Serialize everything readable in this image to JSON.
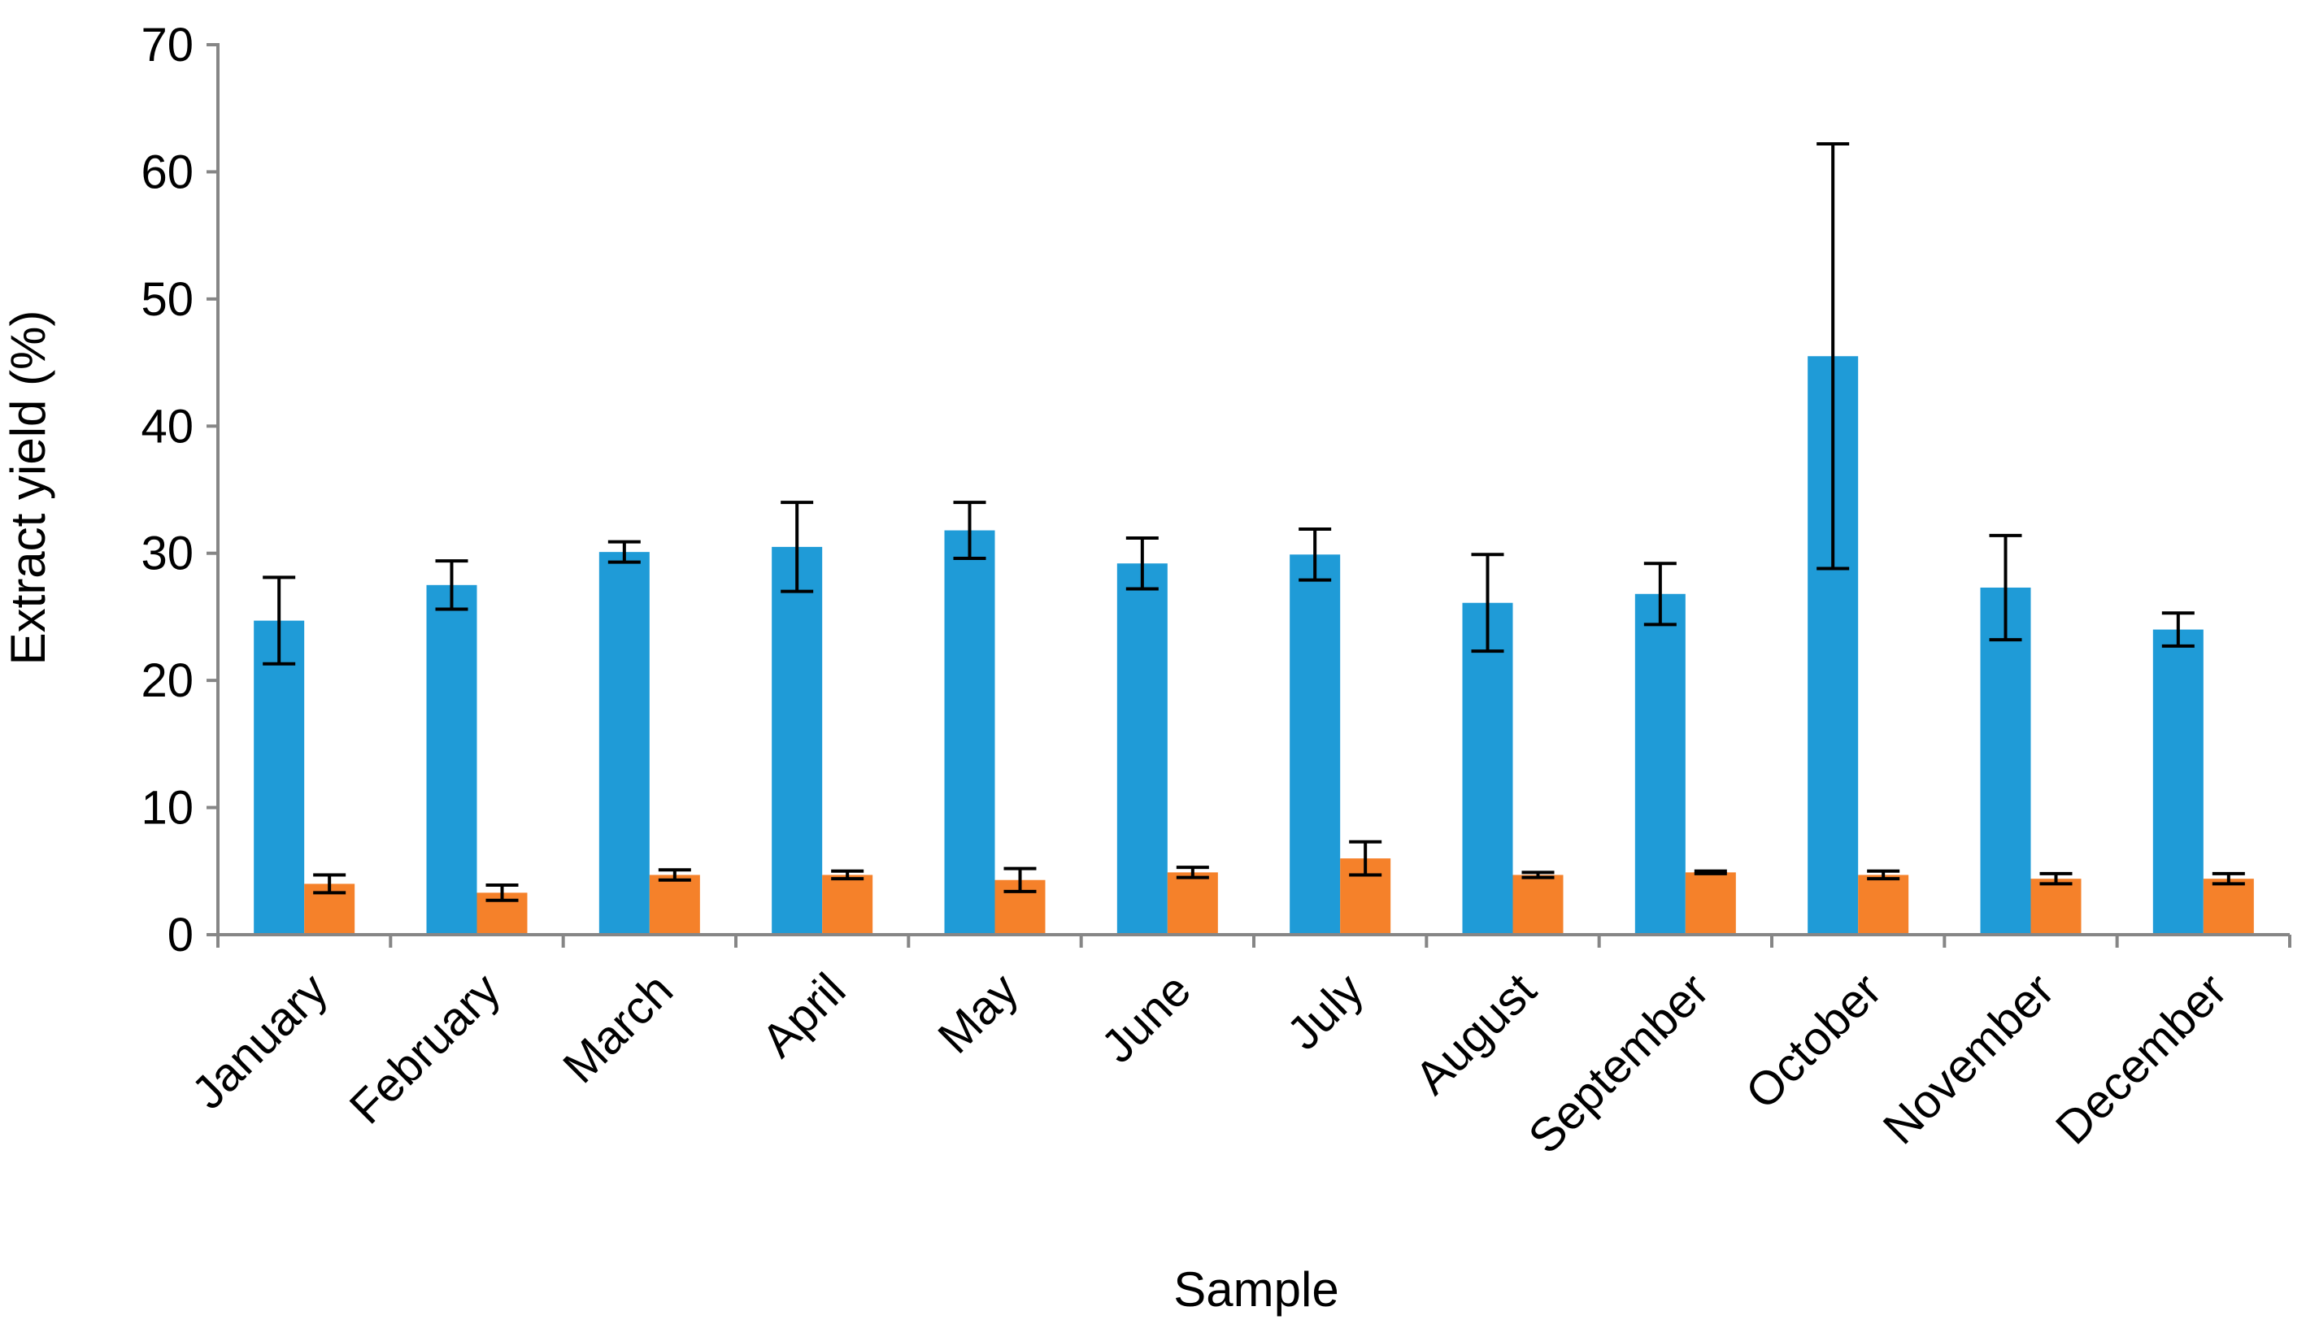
{
  "chart_data": {
    "type": "bar",
    "title": "",
    "xlabel": "Sample",
    "ylabel": "Extract yield (%)",
    "ylim": [
      0,
      70
    ],
    "yticks": [
      0,
      10,
      20,
      30,
      40,
      50,
      60,
      70
    ],
    "grid": false,
    "legend": "none",
    "categories": [
      "January",
      "February",
      "March",
      "April",
      "May",
      "June",
      "July",
      "August",
      "September",
      "October",
      "November",
      "December"
    ],
    "series": [
      {
        "color": "#1f9bd7",
        "values": [
          24.7,
          27.5,
          30.1,
          30.5,
          31.8,
          29.2,
          29.9,
          26.1,
          26.8,
          45.5,
          27.3,
          24.0
        ],
        "errors": [
          3.4,
          1.9,
          0.8,
          3.5,
          2.2,
          2.0,
          2.0,
          3.8,
          2.4,
          16.7,
          4.1,
          1.3
        ]
      },
      {
        "color": "#f5812a",
        "values": [
          4.0,
          3.3,
          4.7,
          4.7,
          4.3,
          4.9,
          6.0,
          4.7,
          4.9,
          4.7,
          4.4,
          4.4
        ],
        "errors": [
          0.7,
          0.6,
          0.4,
          0.3,
          0.9,
          0.4,
          1.3,
          0.2,
          0.1,
          0.3,
          0.4,
          0.4
        ]
      }
    ]
  }
}
